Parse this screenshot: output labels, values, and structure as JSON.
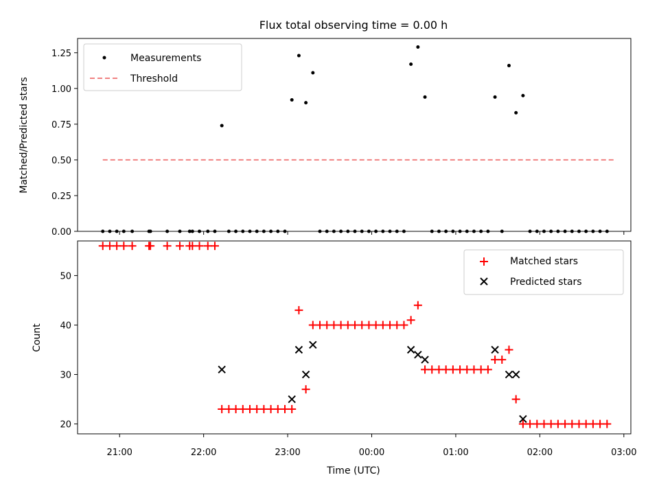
{
  "chart_data": [
    {
      "type": "scatter",
      "title": "Flux total observing time = 0.00 h",
      "ylabel": "Matched/Predicted stars",
      "ylim": [
        0,
        1.35
      ],
      "xlim": [
        "20:30",
        "03:05"
      ],
      "yticks": [
        "0.00",
        "0.25",
        "0.50",
        "0.75",
        "1.00",
        "1.25"
      ],
      "legend": {
        "placement": "top-left",
        "entries": [
          "Measurements",
          "Threshold"
        ]
      },
      "colors": {
        "measurements": "#000000",
        "threshold": "#f08080"
      },
      "series": [
        {
          "name": "Measurements",
          "points": [
            [
              "20:48",
              0
            ],
            [
              "20:53",
              0
            ],
            [
              "20:58",
              0
            ],
            [
              "21:03",
              0
            ],
            [
              "21:09",
              0
            ],
            [
              "21:21",
              0
            ],
            [
              "21:22",
              0
            ],
            [
              "21:34",
              0
            ],
            [
              "21:43",
              0
            ],
            [
              "21:50",
              0
            ],
            [
              "21:52",
              0
            ],
            [
              "21:57",
              0
            ],
            [
              "22:03",
              0
            ],
            [
              "22:08",
              0
            ],
            [
              "22:13",
              0.74
            ],
            [
              "22:18",
              0
            ],
            [
              "22:23",
              0
            ],
            [
              "22:28",
              0
            ],
            [
              "22:33",
              0
            ],
            [
              "22:38",
              0
            ],
            [
              "22:43",
              0
            ],
            [
              "22:48",
              0
            ],
            [
              "22:53",
              0
            ],
            [
              "22:58",
              0
            ],
            [
              "23:03",
              0.92
            ],
            [
              "23:08",
              1.23
            ],
            [
              "23:13",
              0.9
            ],
            [
              "23:18",
              1.11
            ],
            [
              "23:23",
              0
            ],
            [
              "23:28",
              0
            ],
            [
              "23:33",
              0
            ],
            [
              "23:38",
              0
            ],
            [
              "23:43",
              0
            ],
            [
              "23:48",
              0
            ],
            [
              "23:53",
              0
            ],
            [
              "23:58",
              0
            ],
            [
              "00:03",
              0
            ],
            [
              "00:08",
              0
            ],
            [
              "00:13",
              0
            ],
            [
              "00:18",
              0
            ],
            [
              "00:23",
              0
            ],
            [
              "00:28",
              1.17
            ],
            [
              "00:33",
              1.29
            ],
            [
              "00:38",
              0.94
            ],
            [
              "00:43",
              0
            ],
            [
              "00:48",
              0
            ],
            [
              "00:53",
              0
            ],
            [
              "00:58",
              0
            ],
            [
              "01:03",
              0
            ],
            [
              "01:08",
              0
            ],
            [
              "01:13",
              0
            ],
            [
              "01:18",
              0
            ],
            [
              "01:23",
              0
            ],
            [
              "01:28",
              0.94
            ],
            [
              "01:33",
              0
            ],
            [
              "01:38",
              1.16
            ],
            [
              "01:43",
              0.83
            ],
            [
              "01:48",
              0.95
            ],
            [
              "01:53",
              0
            ],
            [
              "01:58",
              0
            ],
            [
              "02:03",
              0
            ],
            [
              "02:08",
              0
            ],
            [
              "02:13",
              0
            ],
            [
              "02:18",
              0
            ],
            [
              "02:23",
              0
            ],
            [
              "02:28",
              0
            ],
            [
              "02:33",
              0
            ],
            [
              "02:38",
              0
            ],
            [
              "02:43",
              0
            ],
            [
              "02:48",
              0
            ]
          ]
        },
        {
          "name": "Threshold",
          "points": [
            [
              "20:48",
              0.5
            ],
            [
              "02:53",
              0.5
            ]
          ]
        }
      ]
    },
    {
      "type": "scatter",
      "xlabel": "Time (UTC)",
      "ylabel": "Count",
      "ylim": [
        18,
        57
      ],
      "xlim": [
        "20:30",
        "03:05"
      ],
      "yticks": [
        "20",
        "30",
        "40",
        "50"
      ],
      "xticks": [
        "21:00",
        "22:00",
        "23:00",
        "00:00",
        "01:00",
        "02:00",
        "03:00"
      ],
      "legend": {
        "placement": "top-right",
        "entries": [
          "Matched stars",
          "Predicted stars"
        ]
      },
      "colors": {
        "matched": "#ff0000",
        "predicted": "#000000"
      },
      "series": [
        {
          "name": "Matched stars",
          "points": [
            [
              "20:48",
              56
            ],
            [
              "20:53",
              56
            ],
            [
              "20:58",
              56
            ],
            [
              "21:03",
              56
            ],
            [
              "21:09",
              56
            ],
            [
              "21:21",
              56
            ],
            [
              "21:22",
              56
            ],
            [
              "21:34",
              56
            ],
            [
              "21:43",
              56
            ],
            [
              "21:50",
              56
            ],
            [
              "21:52",
              56
            ],
            [
              "21:57",
              56
            ],
            [
              "22:03",
              56
            ],
            [
              "22:08",
              56
            ],
            [
              "22:13",
              23
            ],
            [
              "22:18",
              23
            ],
            [
              "22:23",
              23
            ],
            [
              "22:28",
              23
            ],
            [
              "22:33",
              23
            ],
            [
              "22:38",
              23
            ],
            [
              "22:43",
              23
            ],
            [
              "22:48",
              23
            ],
            [
              "22:53",
              23
            ],
            [
              "22:58",
              23
            ],
            [
              "23:03",
              23
            ],
            [
              "23:08",
              43
            ],
            [
              "23:13",
              27
            ],
            [
              "23:18",
              40
            ],
            [
              "23:23",
              40
            ],
            [
              "23:28",
              40
            ],
            [
              "23:33",
              40
            ],
            [
              "23:38",
              40
            ],
            [
              "23:43",
              40
            ],
            [
              "23:48",
              40
            ],
            [
              "23:53",
              40
            ],
            [
              "23:58",
              40
            ],
            [
              "00:03",
              40
            ],
            [
              "00:08",
              40
            ],
            [
              "00:13",
              40
            ],
            [
              "00:18",
              40
            ],
            [
              "00:23",
              40
            ],
            [
              "00:28",
              41
            ],
            [
              "00:33",
              44
            ],
            [
              "00:38",
              31
            ],
            [
              "00:43",
              31
            ],
            [
              "00:48",
              31
            ],
            [
              "00:53",
              31
            ],
            [
              "00:58",
              31
            ],
            [
              "01:03",
              31
            ],
            [
              "01:08",
              31
            ],
            [
              "01:13",
              31
            ],
            [
              "01:18",
              31
            ],
            [
              "01:23",
              31
            ],
            [
              "01:28",
              33
            ],
            [
              "01:33",
              33
            ],
            [
              "01:38",
              35
            ],
            [
              "01:43",
              25
            ],
            [
              "01:48",
              20
            ],
            [
              "01:53",
              20
            ],
            [
              "01:58",
              20
            ],
            [
              "02:03",
              20
            ],
            [
              "02:08",
              20
            ],
            [
              "02:13",
              20
            ],
            [
              "02:18",
              20
            ],
            [
              "02:23",
              20
            ],
            [
              "02:28",
              20
            ],
            [
              "02:33",
              20
            ],
            [
              "02:38",
              20
            ],
            [
              "02:43",
              20
            ],
            [
              "02:48",
              20
            ]
          ]
        },
        {
          "name": "Predicted stars",
          "points": [
            [
              "22:13",
              31
            ],
            [
              "23:03",
              25
            ],
            [
              "23:08",
              35
            ],
            [
              "23:13",
              30
            ],
            [
              "23:18",
              36
            ],
            [
              "00:28",
              35
            ],
            [
              "00:33",
              34
            ],
            [
              "00:38",
              33
            ],
            [
              "01:28",
              35
            ],
            [
              "01:38",
              30
            ],
            [
              "01:43",
              30
            ],
            [
              "01:48",
              21
            ]
          ]
        }
      ]
    }
  ]
}
